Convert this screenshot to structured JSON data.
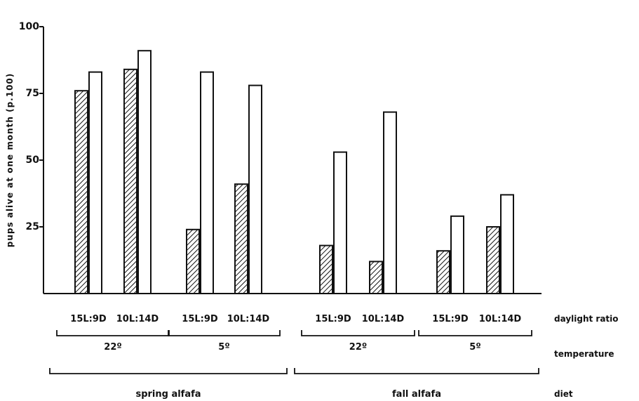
{
  "chart_data": {
    "type": "bar",
    "ylabel": "pups alive at one month (p.100)",
    "ylim": [
      0,
      100
    ],
    "yticks": [
      25,
      50,
      75,
      100
    ],
    "ytick_labels": [
      "25",
      "50",
      "75",
      "100"
    ],
    "categories": [
      "15L:9D",
      "10L:14D",
      "15L:9D",
      "10L:14D",
      "15L:9D",
      "10L:14D",
      "15L:9D",
      "10L:14D"
    ],
    "series": [
      {
        "fill": "hatched",
        "values": [
          76,
          84,
          24,
          41,
          18,
          12,
          16,
          25
        ]
      },
      {
        "fill": "open",
        "values": [
          83,
          91,
          83,
          78,
          53,
          68,
          29,
          37
        ]
      }
    ],
    "temperature_groups": [
      {
        "label": "22º",
        "categories": [
          0,
          1
        ]
      },
      {
        "label": "5º",
        "categories": [
          2,
          3
        ]
      },
      {
        "label": "22º",
        "categories": [
          4,
          5
        ]
      },
      {
        "label": "5º",
        "categories": [
          6,
          7
        ]
      }
    ],
    "diet_groups": [
      {
        "label": "spring alfafa",
        "categories": [
          0,
          1,
          2,
          3
        ]
      },
      {
        "label": "fall alfafa",
        "categories": [
          4,
          5,
          6,
          7
        ]
      }
    ],
    "row_labels": {
      "daylight": "daylight ratio",
      "temperature": "temperature",
      "diet": "diet"
    },
    "colors": {
      "ink": "#111111",
      "background": "#ffffff"
    }
  }
}
